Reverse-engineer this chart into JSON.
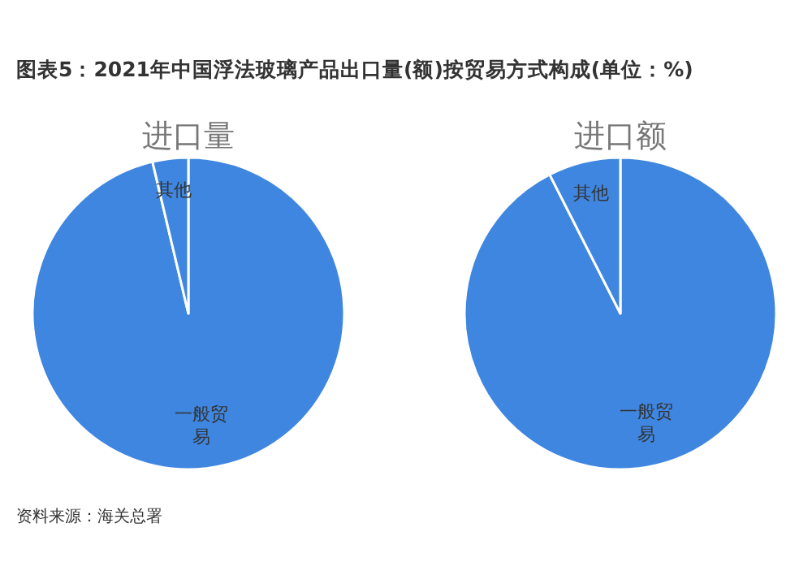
{
  "chart_data": [
    {
      "type": "pie",
      "title": "进口量",
      "categories": [
        "一般贸易",
        "其他"
      ],
      "values": [
        96.3,
        3.7
      ],
      "colors": [
        "#3f86e0",
        "#3f86e0"
      ],
      "annotations": [
        "图表5：2021年中国浮法玻璃产品出口量(额)按贸易方式构成(单位：%)",
        "资料来源：海关总署"
      ]
    },
    {
      "type": "pie",
      "title": "进口额",
      "categories": [
        "一般贸易",
        "其他"
      ],
      "values": [
        92.5,
        7.5
      ],
      "colors": [
        "#3f86e0",
        "#3f86e0"
      ]
    }
  ]
}
